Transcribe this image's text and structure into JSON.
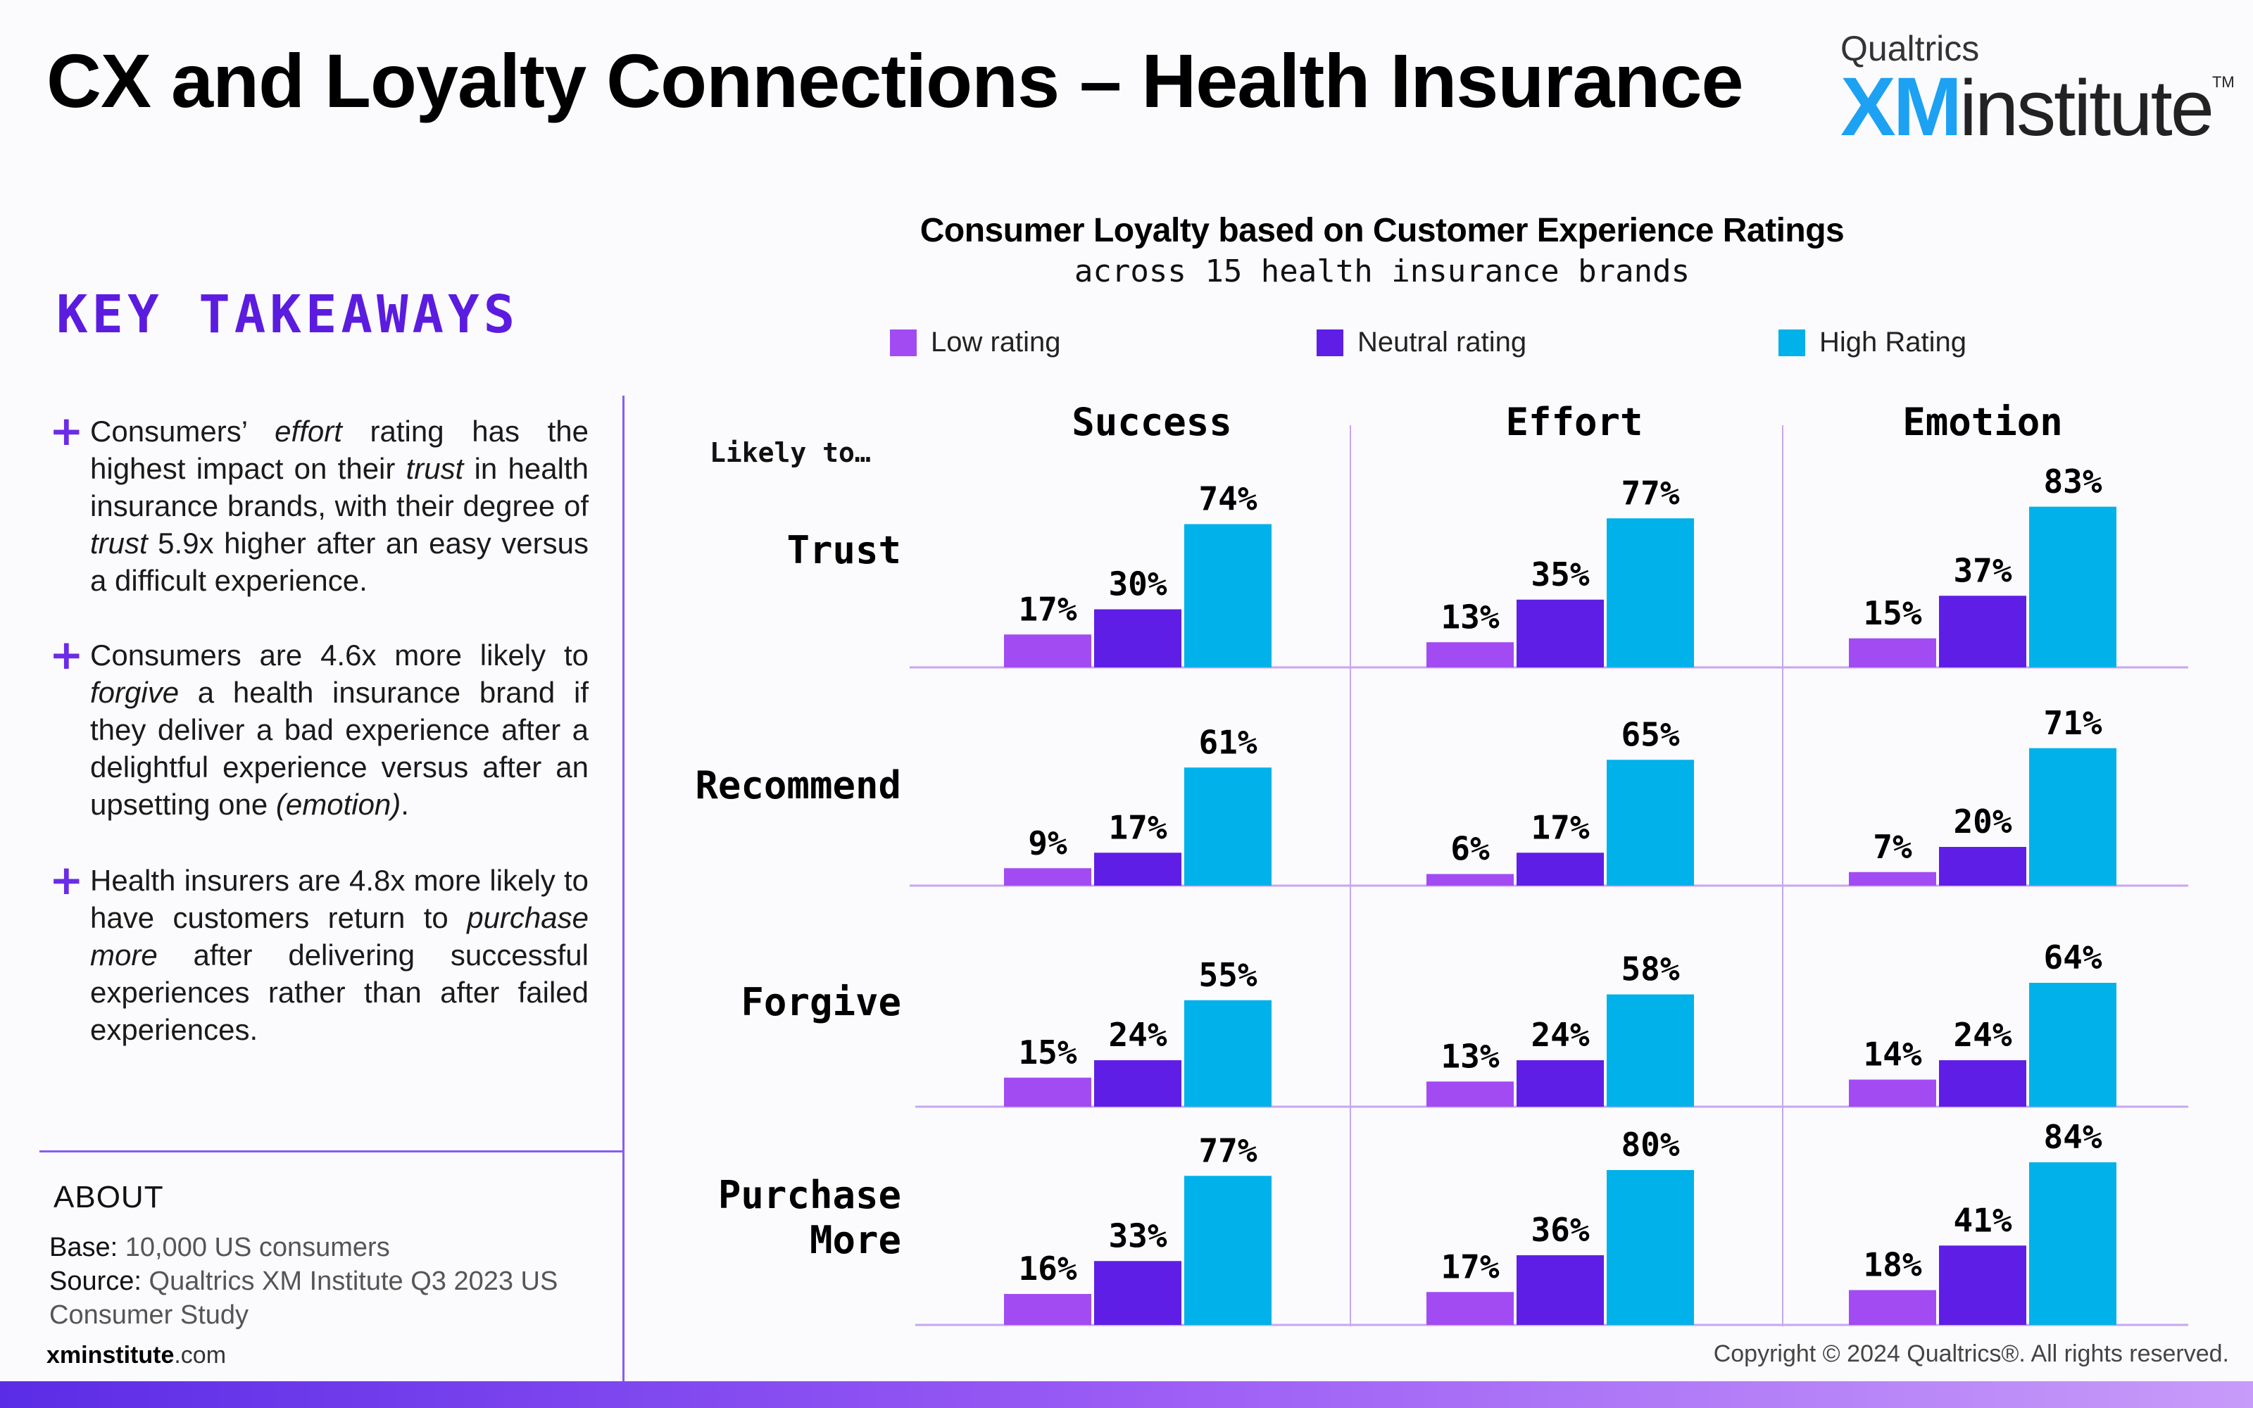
{
  "header": {
    "title": "CX and Loyalty Connections – Health Insurance",
    "logo": {
      "brand": "Qualtrics",
      "xm": "XM",
      "institute": "institute",
      "tm": "TM"
    }
  },
  "key_takeaways": {
    "heading": "KEY TAKEAWAYS",
    "items": [
      {
        "parts": [
          "Consumers’ ",
          "effort",
          " rating has the highest impact on their ",
          "trust",
          " in health insurance brands, with their degree of ",
          "trust",
          " 5.9x higher after an easy versus a difficult experience."
        ]
      },
      {
        "parts": [
          "Consumers are 4.6x more likely to ",
          "forgive",
          " a health insurance brand if they deliver a bad experience after a delightful experience versus after an upsetting one ",
          "(emotion)",
          "."
        ]
      },
      {
        "parts": [
          "Health insurers are 4.8x more likely to have customers return to ",
          "purchase more",
          " after delivering successful experiences rather than after failed experiences."
        ]
      }
    ]
  },
  "about": {
    "heading": "ABOUT",
    "base_label": "Base:",
    "base_value": "10,000 US consumers",
    "source_label": "Source:",
    "source_value": "Qualtrics XM Institute Q3 2023 US",
    "source_value_2": "Consumer Study",
    "site_bold": "xminstitute",
    "site_rest": ".com"
  },
  "footer": {
    "copyright": "Copyright © 2024 Qualtrics®. All rights reserved."
  },
  "colors": {
    "low": "#a24bf3",
    "neutral": "#5f1ee6",
    "high": "#00b1ea",
    "accent": "#5b1ce0",
    "gridline": "#c8a6f0"
  },
  "chart_data": {
    "type": "bar",
    "title": "Consumer Loyalty based on Customer Experience Ratings",
    "subtitle": "across 15 health insurance brands",
    "row_header": "Likely to…",
    "legend": [
      "Low rating",
      "Neutral rating",
      "High Rating"
    ],
    "columns": [
      "Success",
      "Effort",
      "Emotion"
    ],
    "rows": [
      "Trust",
      "Recommend",
      "Forgive",
      "Purchase More"
    ],
    "row_label_lines": [
      [
        "Trust"
      ],
      [
        "Recommend"
      ],
      [
        "Forgive"
      ],
      [
        "Purchase",
        "More"
      ]
    ],
    "unit": "%",
    "values": [
      [
        [
          17,
          30,
          74
        ],
        [
          13,
          35,
          77
        ],
        [
          15,
          37,
          83
        ]
      ],
      [
        [
          9,
          17,
          61
        ],
        [
          6,
          17,
          65
        ],
        [
          7,
          20,
          71
        ]
      ],
      [
        [
          15,
          24,
          55
        ],
        [
          13,
          24,
          58
        ],
        [
          14,
          24,
          64
        ]
      ],
      [
        [
          16,
          33,
          77
        ],
        [
          17,
          36,
          80
        ],
        [
          18,
          41,
          84
        ]
      ]
    ]
  }
}
